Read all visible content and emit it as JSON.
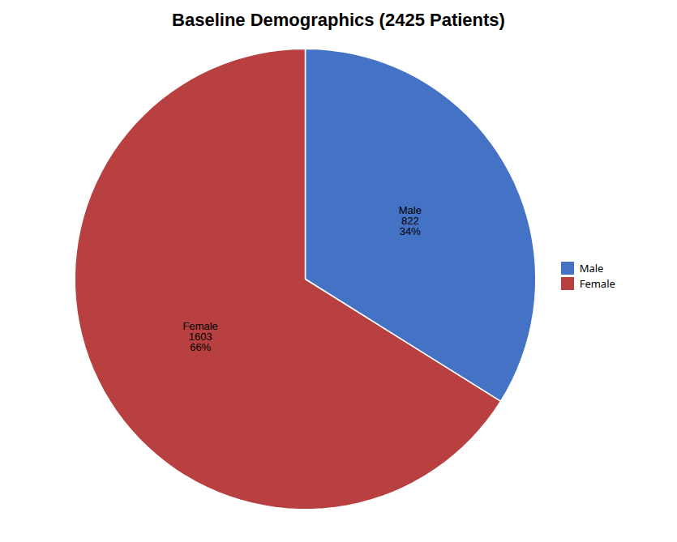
{
  "chart_data": {
    "type": "pie",
    "title": "Baseline Demographics (2425 Patients)",
    "categories": [
      "Male",
      "Female"
    ],
    "values": [
      822,
      1603
    ],
    "percent": [
      34,
      66
    ],
    "percent_labels": [
      "34%",
      "66%"
    ],
    "colors": [
      "#4472C4",
      "#B94040"
    ],
    "data_labels": true,
    "legend": "right"
  }
}
